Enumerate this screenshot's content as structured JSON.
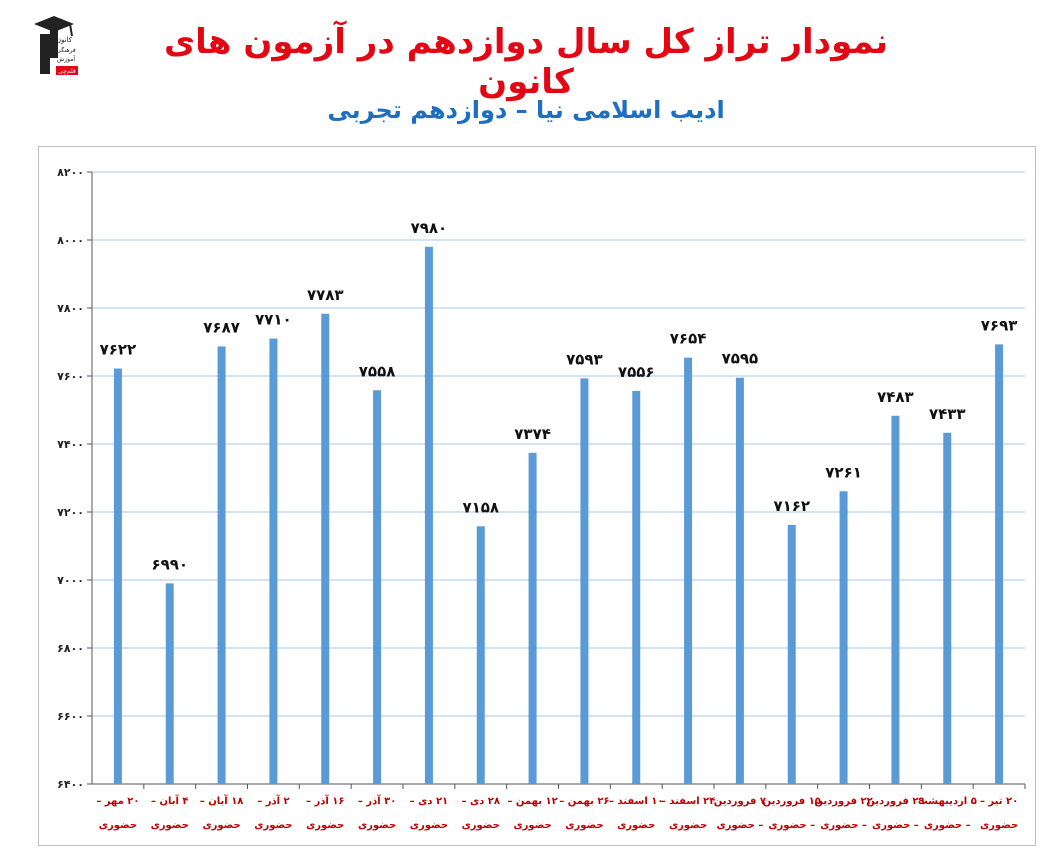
{
  "header": {
    "title": "نمودار تراز کل سال دوازدهم در آزمون های کانون",
    "subtitle": "ادیب اسلامی نیا – دوازدهم تجربی"
  },
  "logo": {
    "lines": [
      "کانون",
      "فرهنگی",
      "آموزش"
    ],
    "badge": "قلم‌چی"
  },
  "colors": {
    "title": "#e30613",
    "subtitle": "#1f6fc0",
    "bar": "#5b9bd5",
    "grid": "#a6c8ea",
    "xlabel": "#c00000"
  },
  "chart_data": {
    "type": "bar",
    "title": "",
    "xlabel": "",
    "ylabel": "",
    "ylim": [
      6400,
      8200
    ],
    "yticks": [
      6400,
      6600,
      6800,
      7000,
      7200,
      7400,
      7600,
      7800,
      8000,
      8200
    ],
    "ytick_labels": [
      "۶۴۰۰",
      "۶۶۰۰",
      "۶۸۰۰",
      "۷۰۰۰",
      "۷۲۰۰",
      "۷۴۰۰",
      "۷۶۰۰",
      "۷۸۰۰",
      "۸۰۰۰",
      "۸۲۰۰"
    ],
    "grid": true,
    "categories": [
      [
        "۲۰ مهر –",
        "حضوری"
      ],
      [
        "۴ آبان –",
        "حضوری"
      ],
      [
        "۱۸ آبان –",
        "حضوری"
      ],
      [
        "۲ آذر –",
        "حضوری"
      ],
      [
        "۱۶ آذر –",
        "حضوری"
      ],
      [
        "۳۰ آذر –",
        "حضوری"
      ],
      [
        "۲۱ دی –",
        "حضوری"
      ],
      [
        "۲۸ دی –",
        "حضوری"
      ],
      [
        "۱۲ بهمن –",
        "حضوری"
      ],
      [
        "۲۶ بهمن –",
        "حضوری"
      ],
      [
        "۱۰ اسفند –",
        "حضوری"
      ],
      [
        "۲۴ اسفند –",
        "حضوری"
      ],
      [
        "۷ فروردین",
        "– حضوری"
      ],
      [
        "۱۵ فروردین",
        "– حضوری"
      ],
      [
        "۲۲ فروردین",
        "– حضوری"
      ],
      [
        "۲۹ فروردین",
        "– حضوری"
      ],
      [
        "۵ اردیبهشت",
        "– حضوری"
      ],
      [
        "۲۰ تیر –",
        "حضوری"
      ]
    ],
    "values": [
      7622,
      6990,
      7687,
      7710,
      7783,
      7558,
      7980,
      7158,
      7374,
      7593,
      7556,
      7654,
      7595,
      7162,
      7261,
      7483,
      7433,
      7693
    ],
    "value_labels": [
      "۷۶۲۲",
      "۶۹۹۰",
      "۷۶۸۷",
      "۷۷۱۰",
      "۷۷۸۳",
      "۷۵۵۸",
      "۷۹۸۰",
      "۷۱۵۸",
      "۷۳۷۴",
      "۷۵۹۳",
      "۷۵۵۶",
      "۷۶۵۴",
      "۷۵۹۵",
      "۷۱۶۲",
      "۷۲۶۱",
      "۷۴۸۳",
      "۷۴۳۳",
      "۷۶۹۳"
    ]
  }
}
